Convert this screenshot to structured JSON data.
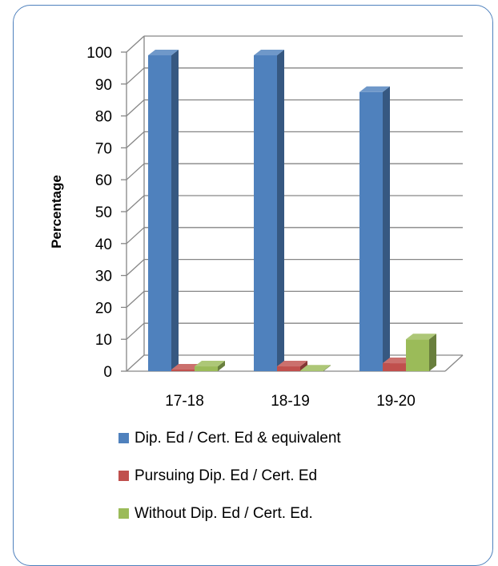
{
  "chart_data": {
    "type": "bar",
    "categories": [
      "17-18",
      "18-19",
      "19-20"
    ],
    "series": [
      {
        "name": "Dip. Ed / Cert. Ed & equivalent",
        "values": [
          99,
          99,
          87.5
        ],
        "color": "#4f81bd"
      },
      {
        "name": "Pursuing Dip. Ed / Cert. Ed",
        "values": [
          0.5,
          1.5,
          2.5
        ],
        "color": "#c0504d"
      },
      {
        "name": "Without Dip. Ed / Cert. Ed.",
        "values": [
          1.5,
          0.2,
          10
        ],
        "color": "#9bbb59"
      }
    ],
    "title": "",
    "xlabel": "",
    "ylabel": "Percentage",
    "ylim": [
      0,
      100
    ],
    "yticks": [
      "0",
      "10",
      "20",
      "30",
      "40",
      "50",
      "60",
      "70",
      "80",
      "90",
      "100"
    ],
    "grid": true,
    "legend_position": "bottom"
  }
}
